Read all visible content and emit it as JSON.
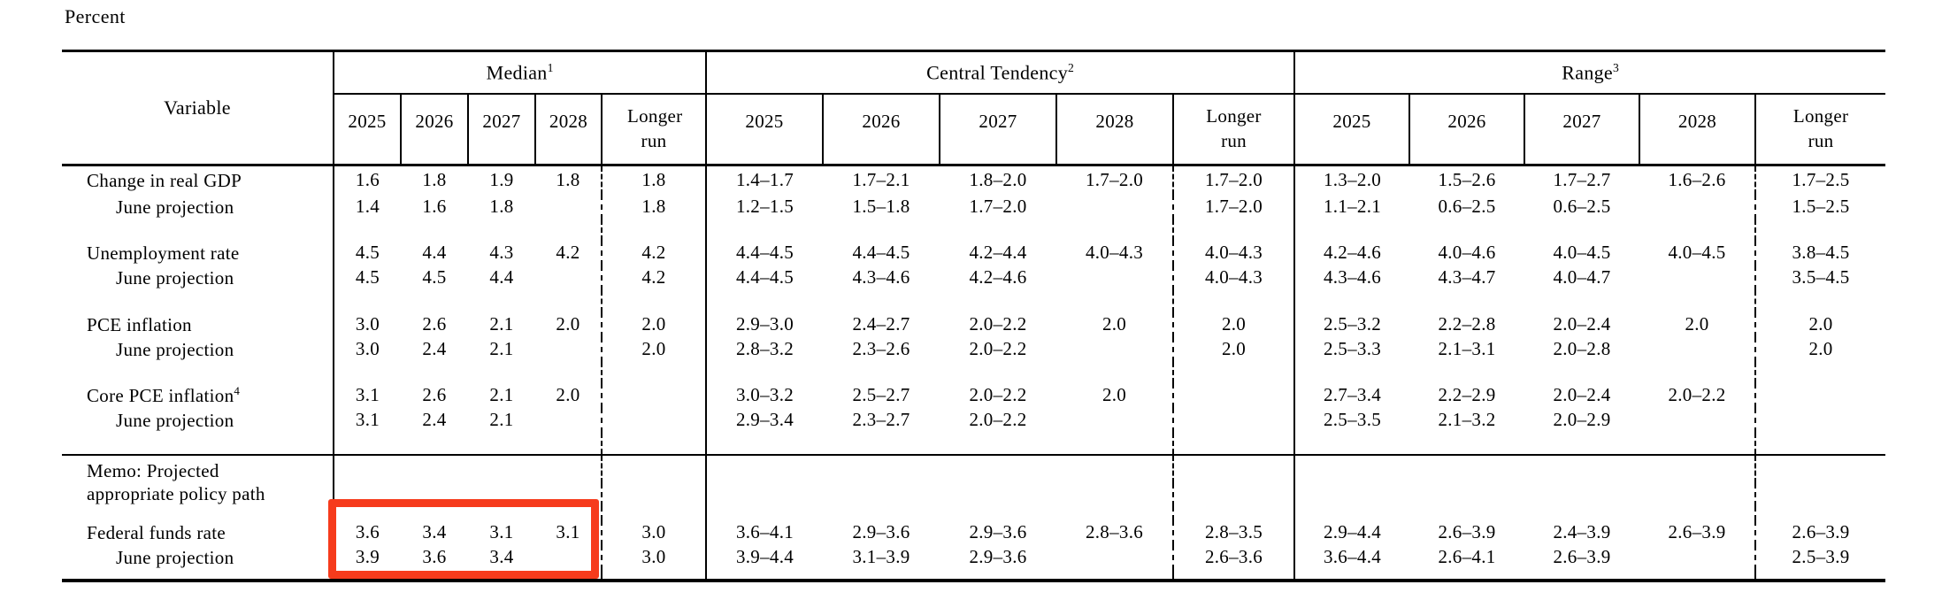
{
  "page": {
    "label": "Percent"
  },
  "colors": {
    "text": "#000000",
    "background": "#ffffff",
    "highlight_red": "#f63b1c"
  },
  "highlight": {
    "purpose": "federal-funds-rate-median-projections"
  },
  "table": {
    "variable_header": "Variable",
    "groups": [
      {
        "label": "Median",
        "footnote": "1"
      },
      {
        "label": "Central Tendency",
        "footnote": "2"
      },
      {
        "label": "Range",
        "footnote": "3"
      }
    ],
    "year_headers": [
      "2025",
      "2026",
      "2027",
      "2028",
      "Longer run"
    ],
    "memo": {
      "line1": "Memo: Projected",
      "line2": "appropriate policy path"
    },
    "rows": [
      {
        "label": "Change in real GDP",
        "indent": false,
        "median": [
          "1.6",
          "1.8",
          "1.9",
          "1.8",
          "1.8"
        ],
        "central_tendency": [
          "1.4–1.7",
          "1.7–2.1",
          "1.8–2.0",
          "1.7–2.0",
          "1.7–2.0"
        ],
        "range": [
          "1.3–2.0",
          "1.5–2.6",
          "1.7–2.7",
          "1.6–2.6",
          "1.7–2.5"
        ]
      },
      {
        "label": "June projection",
        "indent": true,
        "median": [
          "1.4",
          "1.6",
          "1.8",
          "",
          "1.8"
        ],
        "central_tendency": [
          "1.2–1.5",
          "1.5–1.8",
          "1.7–2.0",
          "",
          "1.7–2.0"
        ],
        "range": [
          "1.1–2.1",
          "0.6–2.5",
          "0.6–2.5",
          "",
          "1.5–2.5"
        ]
      },
      {
        "label": "Unemployment rate",
        "indent": false,
        "median": [
          "4.5",
          "4.4",
          "4.3",
          "4.2",
          "4.2"
        ],
        "central_tendency": [
          "4.4–4.5",
          "4.4–4.5",
          "4.2–4.4",
          "4.0–4.3",
          "4.0–4.3"
        ],
        "range": [
          "4.2–4.6",
          "4.0–4.6",
          "4.0–4.5",
          "4.0–4.5",
          "3.8–4.5"
        ]
      },
      {
        "label": "June projection",
        "indent": true,
        "median": [
          "4.5",
          "4.5",
          "4.4",
          "",
          "4.2"
        ],
        "central_tendency": [
          "4.4–4.5",
          "4.3–4.6",
          "4.2–4.6",
          "",
          "4.0–4.3"
        ],
        "range": [
          "4.3–4.6",
          "4.3–4.7",
          "4.0–4.7",
          "",
          "3.5–4.5"
        ]
      },
      {
        "label": "PCE inflation",
        "indent": false,
        "median": [
          "3.0",
          "2.6",
          "2.1",
          "2.0",
          "2.0"
        ],
        "central_tendency": [
          "2.9–3.0",
          "2.4–2.7",
          "2.0–2.2",
          "2.0",
          "2.0"
        ],
        "range": [
          "2.5–3.2",
          "2.2–2.8",
          "2.0–2.4",
          "2.0",
          "2.0"
        ]
      },
      {
        "label": "June projection",
        "indent": true,
        "median": [
          "3.0",
          "2.4",
          "2.1",
          "",
          "2.0"
        ],
        "central_tendency": [
          "2.8–3.2",
          "2.3–2.6",
          "2.0–2.2",
          "",
          "2.0"
        ],
        "range": [
          "2.5–3.3",
          "2.1–3.1",
          "2.0–2.8",
          "",
          "2.0"
        ]
      },
      {
        "label": "Core PCE inflation",
        "footnote": "4",
        "indent": false,
        "median": [
          "3.1",
          "2.6",
          "2.1",
          "2.0",
          ""
        ],
        "central_tendency": [
          "3.0–3.2",
          "2.5–2.7",
          "2.0–2.2",
          "2.0",
          ""
        ],
        "range": [
          "2.7–3.4",
          "2.2–2.9",
          "2.0–2.4",
          "2.0–2.2",
          ""
        ]
      },
      {
        "label": "June projection",
        "indent": true,
        "median": [
          "3.1",
          "2.4",
          "2.1",
          "",
          ""
        ],
        "central_tendency": [
          "2.9–3.4",
          "2.3–2.7",
          "2.0–2.2",
          "",
          ""
        ],
        "range": [
          "2.5–3.5",
          "2.1–3.2",
          "2.0–2.9",
          "",
          ""
        ]
      },
      {
        "label": "Federal funds rate",
        "indent": false,
        "median": [
          "3.6",
          "3.4",
          "3.1",
          "3.1",
          "3.0"
        ],
        "central_tendency": [
          "3.6–4.1",
          "2.9–3.6",
          "2.9–3.6",
          "2.8–3.6",
          "2.8–3.5"
        ],
        "range": [
          "2.9–4.4",
          "2.6–3.9",
          "2.4–3.9",
          "2.6–3.9",
          "2.6–3.9"
        ]
      },
      {
        "label": "June projection",
        "indent": true,
        "median": [
          "3.9",
          "3.6",
          "3.4",
          "",
          "3.0"
        ],
        "central_tendency": [
          "3.9–4.4",
          "3.1–3.9",
          "2.9–3.6",
          "",
          "2.6–3.6"
        ],
        "range": [
          "3.6–4.4",
          "2.6–4.1",
          "2.6–3.9",
          "",
          "2.5–3.9"
        ]
      }
    ]
  }
}
